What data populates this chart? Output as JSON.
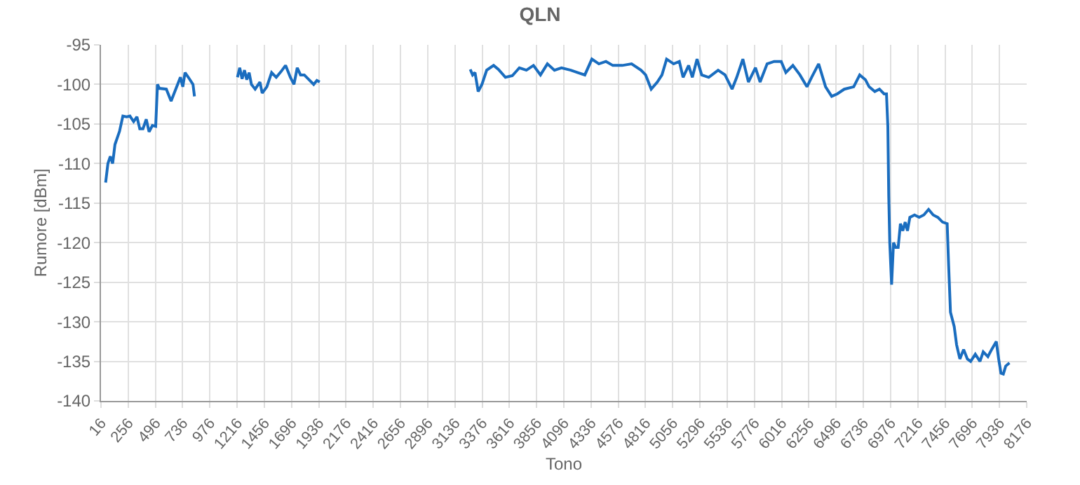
{
  "chart_data": {
    "type": "line",
    "title": "QLN",
    "xlabel": "Tono",
    "ylabel": "Rumore [dBm]",
    "xlim": [
      16,
      8176
    ],
    "ylim": [
      -140,
      -95
    ],
    "xticks": [
      16,
      256,
      496,
      736,
      976,
      1216,
      1456,
      1696,
      1936,
      2176,
      2416,
      2656,
      2896,
      3136,
      3376,
      3616,
      3856,
      4096,
      4336,
      4576,
      4816,
      5056,
      5296,
      5536,
      5776,
      6016,
      6256,
      6496,
      6736,
      6976,
      7216,
      7456,
      7696,
      7936,
      8176
    ],
    "yticks": [
      -95,
      -100,
      -105,
      -110,
      -115,
      -120,
      -125,
      -130,
      -135,
      -140
    ],
    "grid": true,
    "marker": "none",
    "line_style": "solid",
    "series": [
      {
        "color": "#1a6dbf",
        "x": [
          57,
          77,
          98,
          119,
          139,
          180,
          209,
          242,
          271,
          304,
          333,
          358,
          386,
          415,
          440,
          469,
          498,
          514,
          531,
          592,
          634,
          675,
          716,
          737,
          757,
          786,
          827,
          840,
          1030,
          1219,
          1239,
          1260,
          1281,
          1301,
          1322,
          1342,
          1375,
          1417,
          1437,
          1478,
          1520,
          1561,
          1602,
          1643,
          1685,
          1717,
          1746,
          1775,
          1808,
          1849,
          1891,
          1919,
          1944,
          2600,
          3271,
          3292,
          3313,
          3341,
          3374,
          3416,
          3477,
          3519,
          3581,
          3642,
          3704,
          3766,
          3828,
          3890,
          3951,
          4013,
          4075,
          4157,
          4219,
          4281,
          4343,
          4405,
          4467,
          4528,
          4611,
          4693,
          4776,
          4817,
          4866,
          4920,
          4961,
          5002,
          5064,
          5114,
          5147,
          5196,
          5229,
          5270,
          5311,
          5373,
          5456,
          5517,
          5579,
          5620,
          5674,
          5723,
          5785,
          5826,
          5888,
          5950,
          6012,
          6053,
          6115,
          6177,
          6239,
          6280,
          6342,
          6403,
          6457,
          6506,
          6568,
          6651,
          6704,
          6754,
          6787,
          6837,
          6878,
          6919,
          6940,
          6952,
          6960,
          6969,
          6985,
          7002,
          7022,
          7043,
          7063,
          7084,
          7105,
          7125,
          7146,
          7187,
          7228,
          7269,
          7311,
          7352,
          7393,
          7434,
          7475,
          7488,
          7504,
          7537,
          7558,
          7587,
          7620,
          7653,
          7682,
          7723,
          7764,
          7793,
          7834,
          7867,
          7908,
          7929,
          7949,
          7970,
          7991,
          8024
        ],
        "values": [
          -112.4,
          -110,
          -109.1,
          -110,
          -107.6,
          -105.9,
          -104,
          -104.1,
          -104,
          -104.7,
          -104.1,
          -105.6,
          -105.6,
          -104.4,
          -106,
          -105.2,
          -105.3,
          -100,
          -100.5,
          -100.6,
          -102.1,
          -100.6,
          -99.1,
          -100.3,
          -98.5,
          -99.1,
          -100,
          -101.5,
          null,
          -99.1,
          -97.9,
          -99.3,
          -98.2,
          -99.4,
          -98.5,
          -100,
          -100.6,
          -99.7,
          -101.1,
          -100.3,
          -98.5,
          -99.1,
          -98.4,
          -97.6,
          -99.1,
          -100,
          -97.9,
          -98.8,
          -98.8,
          -99.4,
          -100,
          -99.5,
          -99.7,
          null,
          -98.1,
          -98.8,
          -98.5,
          -100.9,
          -100,
          -98.2,
          -97.6,
          -98.1,
          -99.1,
          -98.9,
          -97.9,
          -98.2,
          -97.6,
          -98.8,
          -97.4,
          -98.2,
          -97.9,
          -98.2,
          -98.5,
          -98.8,
          -96.8,
          -97.4,
          -97.1,
          -97.6,
          -97.6,
          -97.4,
          -98.2,
          -98.8,
          -100.6,
          -99.7,
          -98.8,
          -96.8,
          -97.4,
          -97.1,
          -99.1,
          -97.6,
          -99.1,
          -96.8,
          -98.8,
          -99.1,
          -98.2,
          -98.8,
          -100.6,
          -99.1,
          -96.8,
          -99.7,
          -97.9,
          -99.7,
          -97.4,
          -97.1,
          -97.1,
          -98.5,
          -97.6,
          -98.8,
          -100.3,
          -99.1,
          -97.4,
          -100.3,
          -101.5,
          -101.2,
          -100.6,
          -100.3,
          -98.8,
          -99.4,
          -100.3,
          -100.9,
          -100.6,
          -101.2,
          -101.2,
          -105.3,
          -114.1,
          -120,
          -125.3,
          -120,
          -120.6,
          -120.6,
          -117.6,
          -118.5,
          -117.4,
          -118.5,
          -116.8,
          -116.5,
          -116.8,
          -116.5,
          -115.8,
          -116.5,
          -116.8,
          -117.4,
          -117.6,
          -122.9,
          -128.8,
          -130.6,
          -132.9,
          -134.7,
          -133.5,
          -134.7,
          -135,
          -134.1,
          -135,
          -133.8,
          -134.4,
          -133.5,
          -132.5,
          -134.7,
          -136.5,
          -136.6,
          -135.6,
          -135.2
        ]
      }
    ]
  }
}
